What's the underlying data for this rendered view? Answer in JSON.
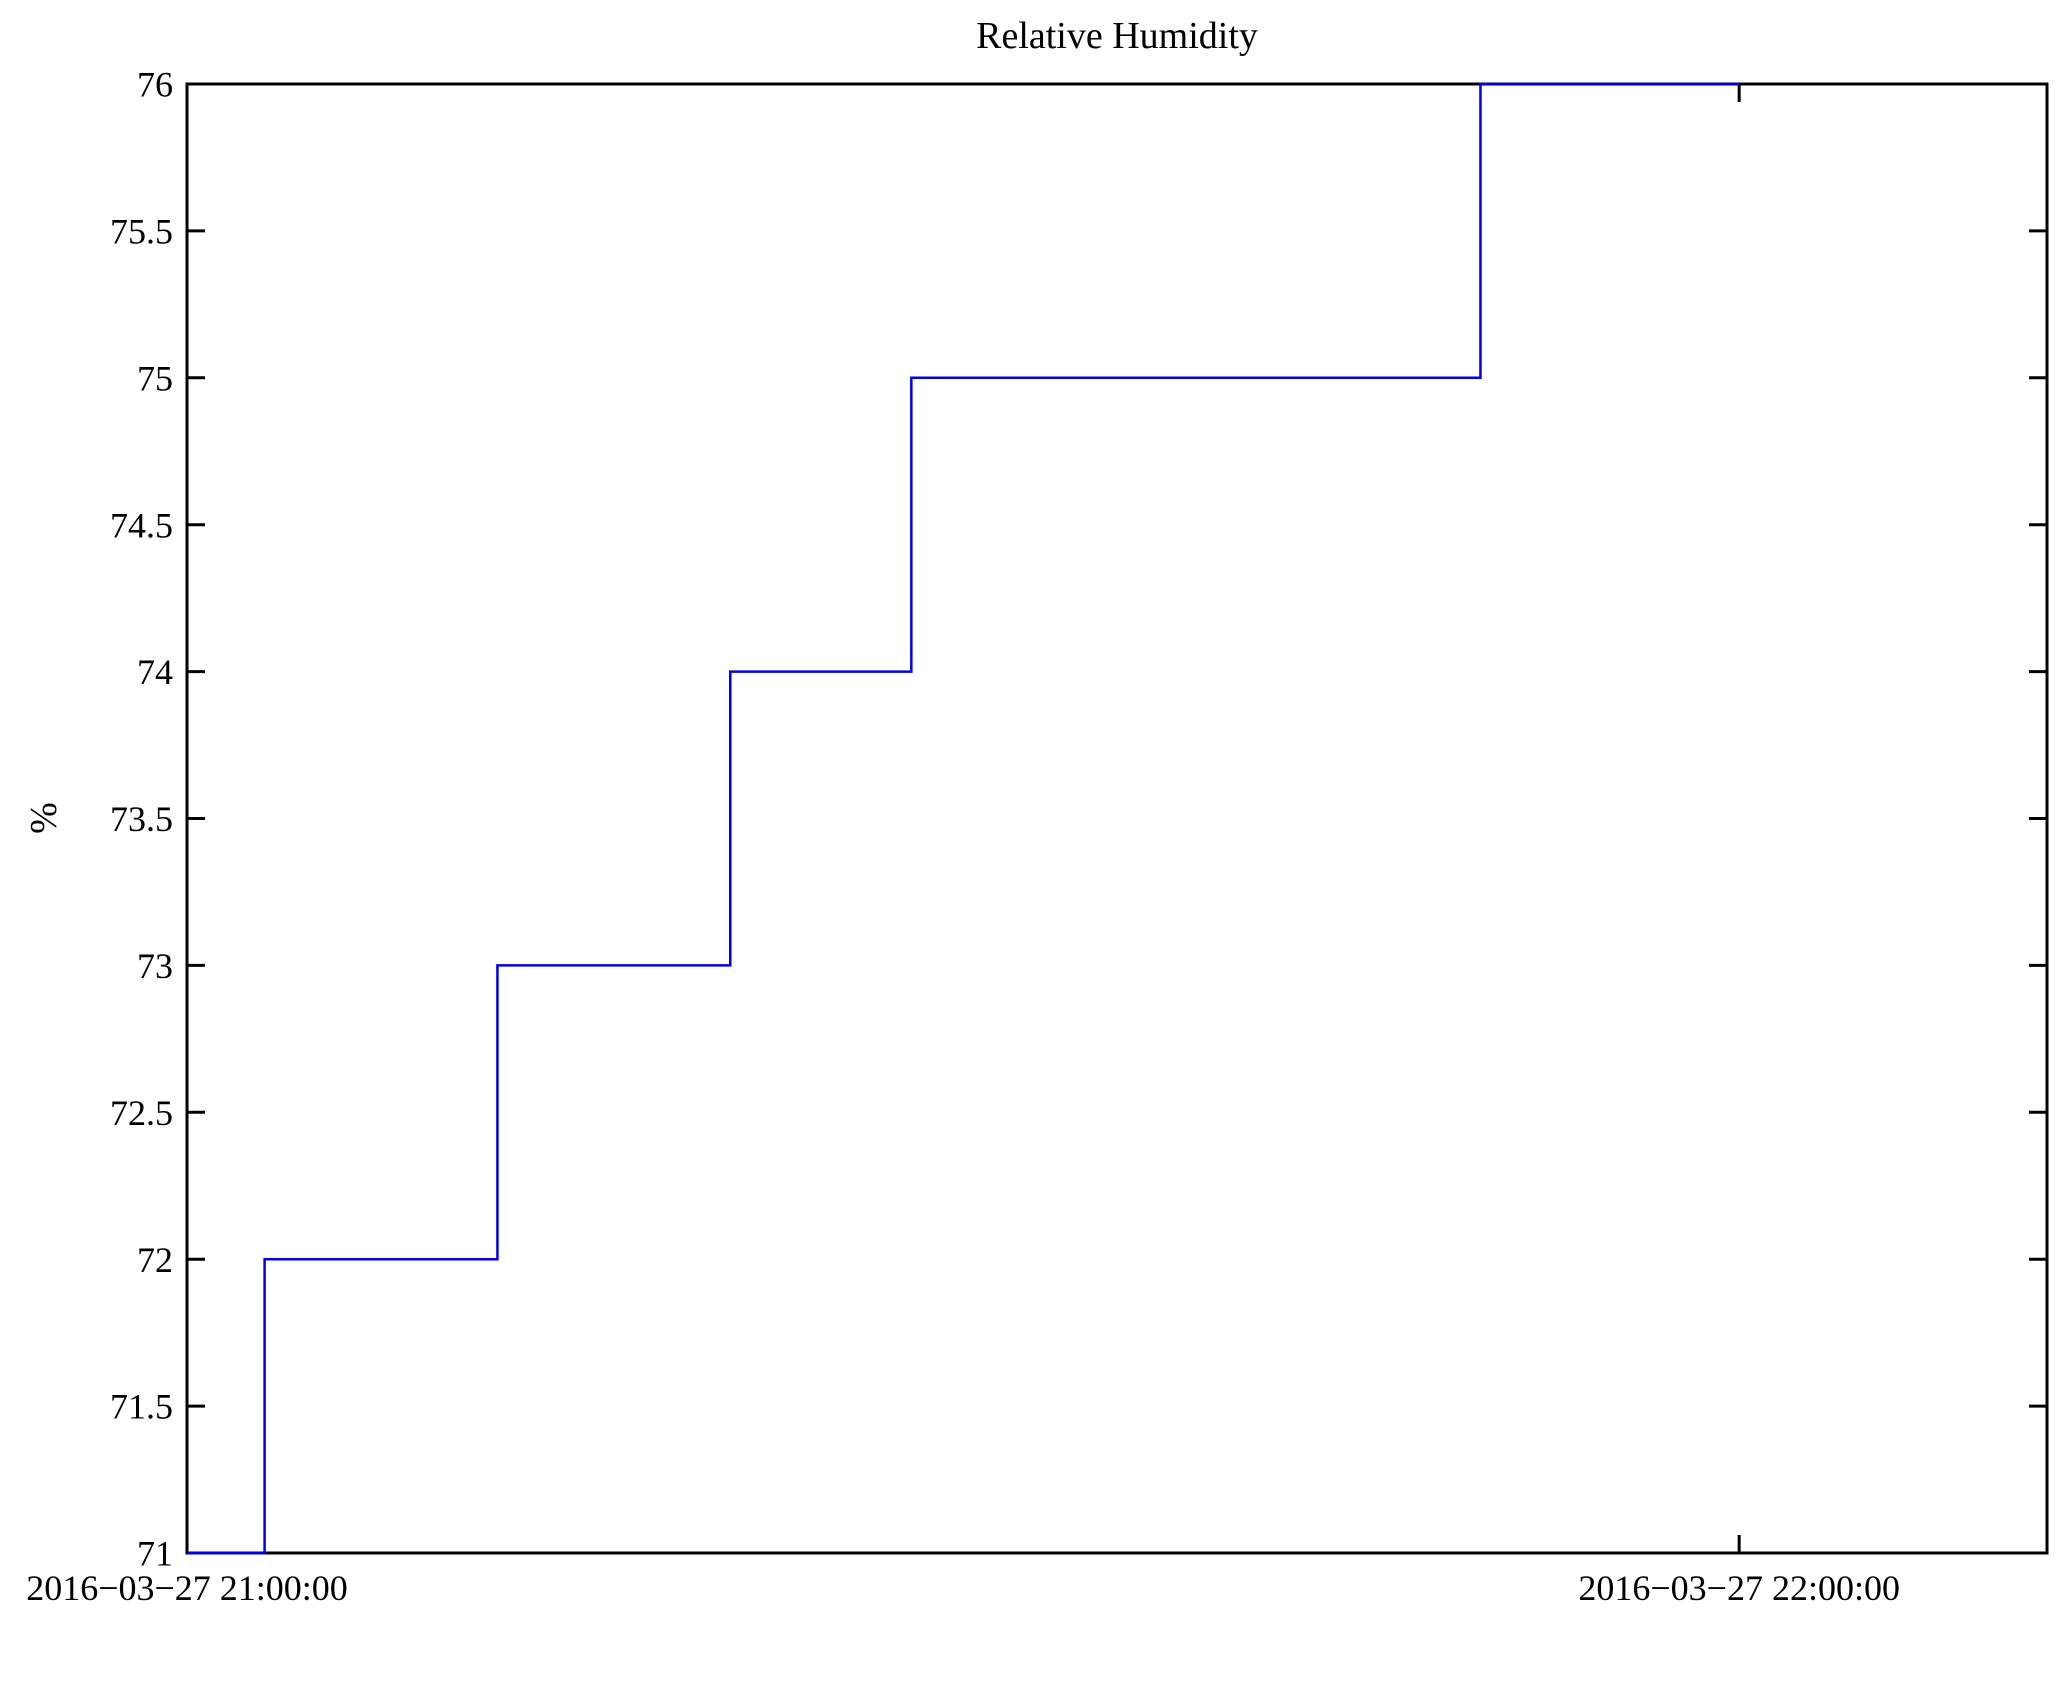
{
  "figure": {
    "background": "#ffffff"
  },
  "chart_data": {
    "type": "line",
    "line_style": "step-post",
    "title": "Relative Humidity",
    "xlabel": "",
    "ylabel": "%",
    "grid": false,
    "legend": null,
    "line_color": "#0000ee",
    "axis_color": "#000000",
    "tick_label_font_px": 36,
    "y_axis": {
      "ylim": [
        71,
        76
      ],
      "tick_step": 0.5,
      "tick_labels": [
        "71",
        "71.5",
        "72",
        "72.5",
        "73",
        "73.5",
        "74",
        "74.5",
        "75",
        "75.5",
        "76"
      ]
    },
    "x_axis": {
      "xlim_minutes": [
        0,
        71.9
      ],
      "tick_minutes": [
        0,
        60
      ],
      "tick_labels": [
        "2016−03−27 21:00:00",
        "2016−03−27 22:00:00"
      ]
    },
    "series": [
      {
        "name": "Relative Humidity",
        "units": "%",
        "points": [
          {
            "time": "2016-03-27 21:00:00",
            "minutes": 0,
            "value": 71
          },
          {
            "time": "2016-03-27 21:03:00",
            "minutes": 3,
            "value": 72
          },
          {
            "time": "2016-03-27 21:12:00",
            "minutes": 12,
            "value": 73
          },
          {
            "time": "2016-03-27 21:21:00",
            "minutes": 21,
            "value": 74
          },
          {
            "time": "2016-03-27 21:28:00",
            "minutes": 28,
            "value": 75
          },
          {
            "time": "2016-03-27 21:50:00",
            "minutes": 50,
            "value": 76
          }
        ],
        "end_minutes": 60,
        "end_time": "2016-03-27 22:00:00"
      }
    ]
  }
}
